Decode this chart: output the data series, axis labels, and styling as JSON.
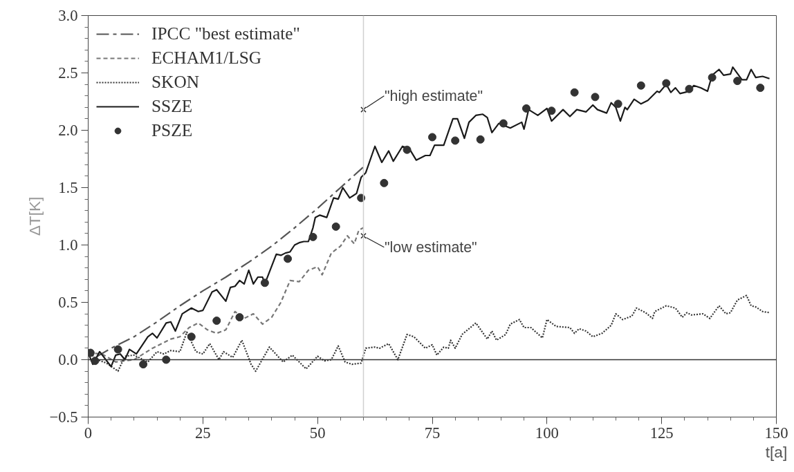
{
  "chart_data": {
    "type": "line",
    "xlabel": "t[a]",
    "ylabel": "ΔT[K]",
    "xlim": [
      0,
      150
    ],
    "xticks": [
      0,
      25,
      50,
      75,
      100,
      125,
      150
    ],
    "ylim": [
      -0.5,
      3.0
    ],
    "yticks": [
      {
        "value": -0.5,
        "label": "−0.5"
      },
      {
        "value": 0,
        "label": "0.0"
      },
      {
        "value": 0.5,
        "label": "0.5"
      },
      {
        "value": 1.0,
        "label": "1.0"
      },
      {
        "value": 1.5,
        "label": "1.5"
      },
      {
        "value": 2.0,
        "label": "2.0"
      },
      {
        "value": 2.5,
        "label": "2.5"
      },
      {
        "value": 3.0,
        "label": "3.0"
      }
    ],
    "grid": false,
    "legend": "top left",
    "ref_lines": [
      {
        "axis": "x",
        "value": 60,
        "color": "#d0d0d0"
      },
      {
        "axis": "y",
        "value": 0,
        "color": "#333333"
      }
    ],
    "annotations": [
      {
        "text": "\"high estimate\"",
        "x": 60,
        "y": 2.18
      },
      {
        "text": "\"low estimate\"",
        "x": 60,
        "y": 1.08
      }
    ],
    "series": [
      {
        "name": "IPCC \"best estimate\"",
        "line_style": "dashdot",
        "color": "#555555",
        "x": [
          2,
          5,
          10,
          15,
          20,
          25,
          30,
          35,
          40,
          45,
          50,
          55,
          60
        ],
        "values": [
          0.03,
          0.1,
          0.2,
          0.33,
          0.47,
          0.6,
          0.72,
          0.85,
          0.99,
          1.15,
          1.32,
          1.5,
          1.68
        ]
      },
      {
        "name": "ECHAM1/LSG",
        "line_style": "dashed",
        "color": "#777777",
        "x": [
          0,
          3,
          6,
          10,
          14,
          18,
          20,
          22,
          24,
          26,
          28,
          30,
          32,
          34,
          36,
          38,
          40,
          42,
          44,
          46,
          48,
          50,
          51,
          53,
          55,
          56.5,
          58,
          59,
          60
        ],
        "values": [
          0.06,
          0.05,
          -0.02,
          0.0,
          0.1,
          0.18,
          0.2,
          0.28,
          0.32,
          0.26,
          0.23,
          0.26,
          0.42,
          0.36,
          0.4,
          0.31,
          0.37,
          0.5,
          0.69,
          0.68,
          0.78,
          0.81,
          0.74,
          0.93,
          0.99,
          1.08,
          1.01,
          1.13,
          1.15
        ]
      },
      {
        "name": "SKON",
        "line_style": "dotted",
        "color": "#333333",
        "x": [
          0,
          2,
          4,
          6.5,
          8,
          10,
          13,
          15,
          16.5,
          18,
          20,
          21.5,
          23.5,
          25,
          26.5,
          28.5,
          29.5,
          31.5,
          33.5,
          35.5,
          36.5,
          39.5,
          42.5,
          44.5,
          47.5,
          50,
          51.5,
          53,
          54.5,
          56,
          57.5,
          59.5,
          60.5,
          62.5,
          63.5,
          65.5,
          67.5,
          69.5,
          71,
          73.5,
          75,
          76,
          77.5,
          78.5,
          79,
          80,
          81.5,
          84.5,
          87,
          88,
          89,
          91,
          92,
          94,
          95,
          96.5,
          99,
          100,
          102,
          105,
          106,
          107,
          108.5,
          110,
          112,
          114,
          115,
          116.5,
          118.5,
          119.5,
          121.5,
          123,
          123.5,
          126,
          128,
          129.5,
          130.5,
          131.5,
          134,
          135.5,
          137.5,
          139,
          140,
          141.5,
          143.5,
          144.5,
          145.5,
          147,
          148.5
        ],
        "values": [
          0.07,
          0.0,
          -0.03,
          -0.1,
          0.03,
          0.04,
          -0.02,
          0.07,
          0.05,
          0.08,
          0.07,
          0.24,
          0.07,
          0.05,
          0.14,
          0.0,
          0.07,
          0.02,
          0.17,
          -0.04,
          -0.1,
          0.11,
          -0.02,
          0.04,
          -0.08,
          0.03,
          -0.01,
          0.0,
          0.12,
          -0.02,
          -0.04,
          -0.03,
          0.1,
          0.11,
          0.1,
          0.14,
          0.0,
          0.22,
          0.2,
          0.1,
          0.13,
          0.04,
          0.11,
          0.1,
          0.17,
          0.1,
          0.22,
          0.32,
          0.18,
          0.25,
          0.17,
          0.22,
          0.31,
          0.35,
          0.28,
          0.28,
          0.19,
          0.35,
          0.29,
          0.28,
          0.23,
          0.27,
          0.25,
          0.2,
          0.23,
          0.3,
          0.4,
          0.35,
          0.38,
          0.45,
          0.41,
          0.36,
          0.42,
          0.47,
          0.45,
          0.37,
          0.41,
          0.39,
          0.4,
          0.36,
          0.47,
          0.4,
          0.41,
          0.52,
          0.56,
          0.47,
          0.46,
          0.42,
          0.41
        ]
      },
      {
        "name": "SSZE",
        "line_style": "solid",
        "color": "#1a1a1a",
        "x": [
          0,
          1,
          2.5,
          5,
          6,
          7,
          8,
          9,
          10.5,
          13,
          14,
          15,
          17,
          18,
          19,
          20.5,
          22.5,
          24,
          25,
          27,
          28,
          30,
          31,
          32,
          33,
          34,
          35,
          36,
          37,
          38,
          38.5,
          41,
          42,
          43,
          44,
          45,
          46,
          47,
          48,
          49,
          49.5,
          50.5,
          52,
          53.5,
          54.5,
          55.5,
          57,
          58.5,
          59.5,
          60.5,
          62.5,
          64,
          65.5,
          66.5,
          68.5,
          70,
          71.5,
          73.5,
          74.5,
          75.5,
          77.5,
          79.5,
          80.5,
          82,
          83,
          84.5,
          86,
          87,
          88,
          89.5,
          92,
          94.5,
          95,
          96,
          98,
          100,
          101,
          103.5,
          105,
          106.5,
          108.5,
          110,
          111,
          113,
          114,
          115,
          116,
          117,
          117.5,
          119,
          120.5,
          122,
          124,
          124.5,
          126,
          127,
          128,
          129,
          131,
          132,
          133.5,
          135,
          136,
          137.5,
          138.5,
          140,
          140.5,
          142.5,
          143.5,
          144.5,
          145.5,
          147,
          148.5
        ],
        "values": [
          0.06,
          -0.04,
          0.07,
          -0.06,
          0.04,
          0.05,
          0.0,
          0.09,
          0.05,
          0.2,
          0.23,
          0.19,
          0.32,
          0.33,
          0.25,
          0.4,
          0.45,
          0.42,
          0.43,
          0.59,
          0.61,
          0.51,
          0.63,
          0.64,
          0.69,
          0.66,
          0.78,
          0.66,
          0.72,
          0.72,
          0.66,
          0.92,
          0.91,
          0.93,
          0.94,
          1.0,
          1.02,
          1.03,
          1.03,
          1.15,
          1.24,
          1.26,
          1.24,
          1.41,
          1.4,
          1.5,
          1.41,
          1.45,
          1.59,
          1.63,
          1.86,
          1.72,
          1.82,
          1.73,
          1.86,
          1.84,
          1.74,
          1.78,
          1.78,
          1.87,
          1.87,
          2.1,
          2.1,
          1.93,
          2.07,
          2.13,
          2.14,
          2.11,
          1.98,
          2.06,
          2.02,
          2.07,
          2.01,
          2.18,
          2.13,
          2.19,
          2.08,
          2.18,
          2.12,
          2.18,
          2.16,
          2.22,
          2.18,
          2.15,
          2.24,
          2.2,
          2.08,
          2.2,
          2.18,
          2.27,
          2.23,
          2.26,
          2.34,
          2.33,
          2.4,
          2.33,
          2.37,
          2.32,
          2.34,
          2.39,
          2.37,
          2.34,
          2.48,
          2.53,
          2.48,
          2.49,
          2.55,
          2.44,
          2.44,
          2.53,
          2.46,
          2.47,
          2.45
        ]
      },
      {
        "name": "PSZE",
        "type": "scatter",
        "marker": "circle",
        "color": "#333333",
        "x": [
          0.5,
          1.5,
          6.5,
          12,
          17,
          22.5,
          28,
          33,
          38.5,
          43.5,
          49,
          54,
          59.5,
          64.5,
          69.5,
          75,
          80,
          85.5,
          90.5,
          95.5,
          101,
          106,
          110.5,
          115.5,
          120.5,
          126,
          131,
          136,
          141.5,
          146.5
        ],
        "values": [
          0.06,
          -0.01,
          0.09,
          -0.04,
          0.0,
          0.2,
          0.34,
          0.37,
          0.67,
          0.88,
          1.07,
          1.16,
          1.41,
          1.54,
          1.83,
          1.94,
          1.91,
          1.92,
          2.06,
          2.19,
          2.17,
          2.33,
          2.29,
          2.23,
          2.39,
          2.41,
          2.36,
          2.46,
          2.43,
          2.37
        ]
      }
    ]
  }
}
